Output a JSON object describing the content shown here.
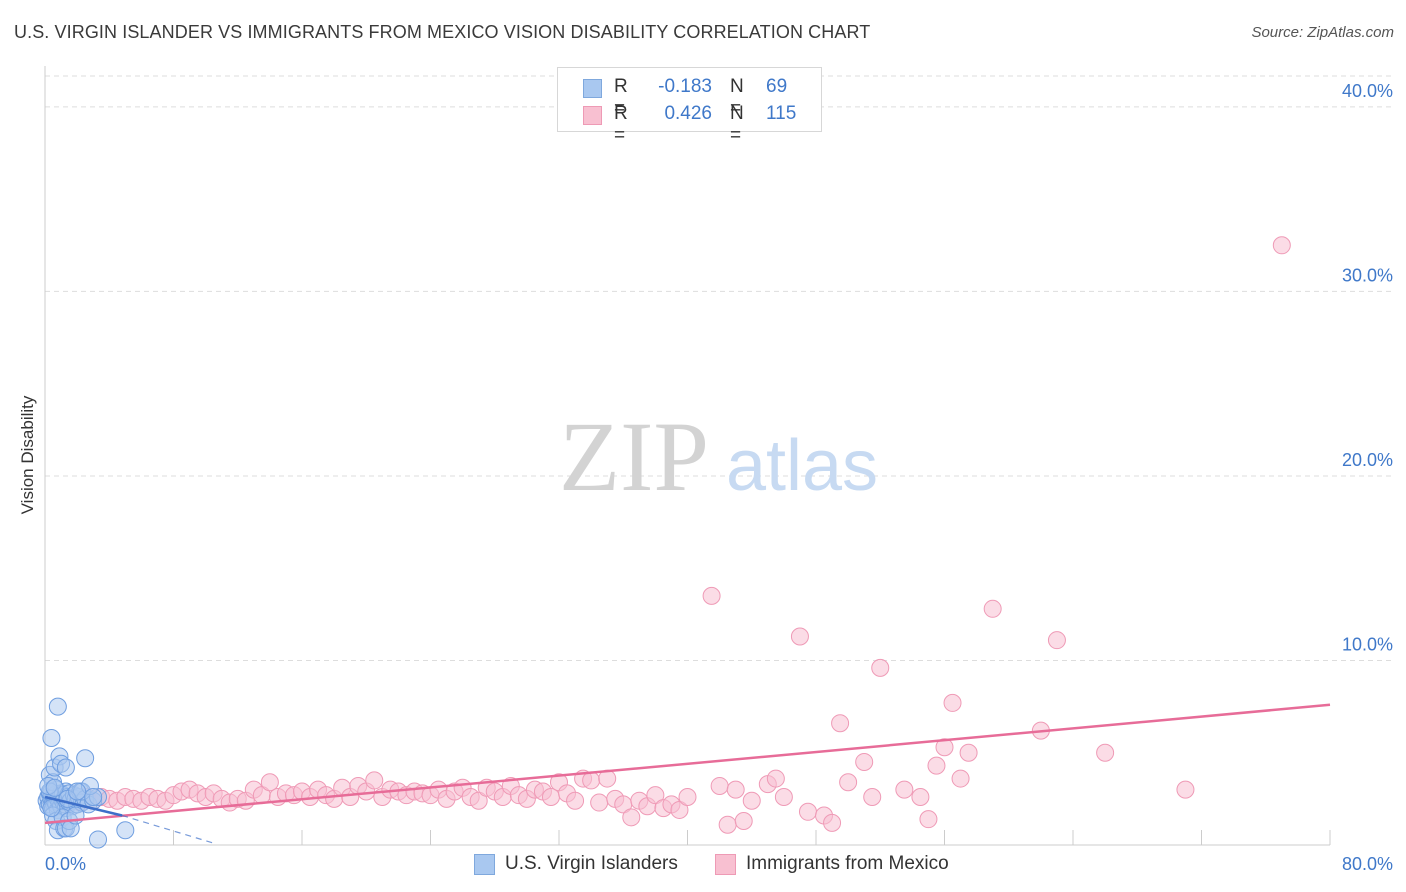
{
  "header": {
    "title": "U.S. VIRGIN ISLANDER VS IMMIGRANTS FROM MEXICO VISION DISABILITY CORRELATION CHART",
    "source": "Source: ZipAtlas.com"
  },
  "watermark": {
    "zip": "ZIP",
    "atlas": "atlas"
  },
  "stats": [
    {
      "r_label": "R =",
      "r_value": "-0.183",
      "n_label": "N =",
      "n_value": "69",
      "swatch": "#a9c8f0",
      "swatch_border": "#7fa8dd"
    },
    {
      "r_label": "R =",
      "r_value": "0.426",
      "n_label": "N =",
      "n_value": "115",
      "swatch": "#f8c0d1",
      "swatch_border": "#ee9ab5"
    }
  ],
  "legend": {
    "series1": "U.S. Virgin Islanders",
    "series2": "Immigrants from Mexico"
  },
  "colors": {
    "blue_fill": "#a9c8f0",
    "blue_stroke": "#6f9ee0",
    "blue_line": "#3d6fc9",
    "pink_fill": "#f8c0d1",
    "pink_stroke": "#ef9ab6",
    "pink_line": "#e76c98",
    "axis_text": "#3f78c9",
    "grid": "#dddddd"
  },
  "chart_data": {
    "type": "scatter",
    "title": "U.S. VIRGIN ISLANDER VS IMMIGRANTS FROM MEXICO VISION DISABILITY CORRELATION CHART",
    "xlabel": "",
    "ylabel": "Vision Disability",
    "xlim": [
      0,
      80
    ],
    "ylim": [
      0,
      42
    ],
    "x_tick_labels": [
      "0.0%",
      "80.0%"
    ],
    "y_ticks": [
      10,
      20,
      30,
      40
    ],
    "y_tick_labels": [
      "10.0%",
      "20.0%",
      "30.0%",
      "40.0%"
    ],
    "grid": true,
    "series": [
      {
        "name": "U.S. Virgin Islanders",
        "r": -0.183,
        "n": 69,
        "trend": {
          "x0": 0,
          "y0": 2.6,
          "x1": 4.8,
          "y1": 1.6,
          "dashed_to_x": 10.5,
          "dashed_to_y": 0.1
        },
        "points": [
          [
            0.1,
            2.4
          ],
          [
            0.2,
            2.6
          ],
          [
            0.2,
            2.1
          ],
          [
            0.3,
            2.8
          ],
          [
            0.3,
            2.2
          ],
          [
            0.4,
            2.5
          ],
          [
            0.4,
            2.9
          ],
          [
            0.5,
            2.3
          ],
          [
            0.5,
            2.0
          ],
          [
            0.6,
            2.7
          ],
          [
            0.6,
            2.4
          ],
          [
            0.7,
            2.2
          ],
          [
            0.7,
            3.0
          ],
          [
            0.8,
            2.5
          ],
          [
            0.8,
            1.9
          ],
          [
            0.9,
            2.6
          ],
          [
            0.9,
            2.3
          ],
          [
            1.0,
            2.8
          ],
          [
            1.0,
            2.1
          ],
          [
            1.1,
            2.4
          ],
          [
            1.1,
            2.7
          ],
          [
            1.2,
            2.2
          ],
          [
            1.2,
            2.5
          ],
          [
            1.3,
            2.9
          ],
          [
            1.3,
            2.0
          ],
          [
            1.4,
            2.6
          ],
          [
            1.5,
            2.3
          ],
          [
            1.5,
            2.8
          ],
          [
            1.6,
            2.4
          ],
          [
            1.7,
            2.1
          ],
          [
            1.8,
            2.7
          ],
          [
            1.9,
            2.5
          ],
          [
            2.0,
            2.2
          ],
          [
            2.1,
            2.6
          ],
          [
            2.2,
            2.9
          ],
          [
            2.3,
            2.3
          ],
          [
            2.5,
            2.5
          ],
          [
            2.7,
            2.2
          ],
          [
            3.0,
            2.4
          ],
          [
            3.3,
            2.6
          ],
          [
            0.3,
            3.8
          ],
          [
            0.5,
            3.4
          ],
          [
            0.4,
            5.8
          ],
          [
            0.6,
            4.2
          ],
          [
            0.8,
            7.5
          ],
          [
            0.9,
            4.8
          ],
          [
            1.0,
            4.4
          ],
          [
            1.3,
            4.2
          ],
          [
            0.5,
            1.6
          ],
          [
            0.7,
            1.3
          ],
          [
            0.8,
            0.8
          ],
          [
            1.1,
            1.5
          ],
          [
            1.2,
            0.9
          ],
          [
            1.3,
            0.9
          ],
          [
            1.5,
            1.3
          ],
          [
            1.6,
            0.9
          ],
          [
            2.3,
            2.9
          ],
          [
            2.5,
            4.7
          ],
          [
            2.8,
            3.2
          ],
          [
            3.0,
            2.6
          ],
          [
            3.3,
            0.3
          ],
          [
            5.0,
            0.8
          ],
          [
            0.3,
            2.9
          ],
          [
            0.2,
            3.2
          ],
          [
            0.6,
            3.1
          ],
          [
            0.4,
            2.0
          ],
          [
            1.9,
            1.6
          ],
          [
            1.4,
            2.5
          ],
          [
            2.0,
            2.9
          ]
        ]
      },
      {
        "name": "Immigrants from Mexico",
        "r": 0.426,
        "n": 115,
        "trend": {
          "x0": 0,
          "y0": 1.2,
          "x1": 80,
          "y1": 7.6
        },
        "points": [
          [
            0.5,
            2.4
          ],
          [
            0.8,
            2.3
          ],
          [
            1.0,
            2.6
          ],
          [
            1.3,
            2.2
          ],
          [
            1.6,
            2.5
          ],
          [
            1.9,
            2.4
          ],
          [
            2.2,
            2.3
          ],
          [
            2.6,
            2.6
          ],
          [
            3.0,
            2.4
          ],
          [
            3.5,
            2.6
          ],
          [
            4.0,
            2.5
          ],
          [
            4.5,
            2.4
          ],
          [
            5.0,
            2.6
          ],
          [
            5.5,
            2.5
          ],
          [
            6.0,
            2.4
          ],
          [
            6.5,
            2.6
          ],
          [
            7.0,
            2.5
          ],
          [
            7.5,
            2.4
          ],
          [
            8.0,
            2.7
          ],
          [
            8.5,
            2.9
          ],
          [
            9.0,
            3.0
          ],
          [
            9.5,
            2.8
          ],
          [
            10.0,
            2.6
          ],
          [
            10.5,
            2.8
          ],
          [
            11.0,
            2.5
          ],
          [
            11.5,
            2.3
          ],
          [
            12.0,
            2.5
          ],
          [
            12.5,
            2.4
          ],
          [
            13.0,
            3.0
          ],
          [
            13.5,
            2.7
          ],
          [
            14.0,
            3.4
          ],
          [
            14.5,
            2.6
          ],
          [
            15.0,
            2.8
          ],
          [
            15.5,
            2.7
          ],
          [
            16.0,
            2.9
          ],
          [
            16.5,
            2.6
          ],
          [
            17.0,
            3.0
          ],
          [
            17.5,
            2.7
          ],
          [
            18.0,
            2.5
          ],
          [
            18.5,
            3.1
          ],
          [
            19.0,
            2.6
          ],
          [
            19.5,
            3.2
          ],
          [
            20.0,
            2.9
          ],
          [
            20.5,
            3.5
          ],
          [
            21.0,
            2.6
          ],
          [
            21.5,
            3.0
          ],
          [
            22.0,
            2.9
          ],
          [
            22.5,
            2.7
          ],
          [
            23.0,
            2.9
          ],
          [
            23.5,
            2.8
          ],
          [
            24.0,
            2.7
          ],
          [
            24.5,
            3.0
          ],
          [
            25.0,
            2.5
          ],
          [
            25.5,
            2.9
          ],
          [
            26.0,
            3.1
          ],
          [
            26.5,
            2.6
          ],
          [
            27.0,
            2.4
          ],
          [
            27.5,
            3.1
          ],
          [
            28.0,
            2.9
          ],
          [
            28.5,
            2.6
          ],
          [
            29.0,
            3.2
          ],
          [
            29.5,
            2.7
          ],
          [
            30.0,
            2.5
          ],
          [
            30.5,
            3.0
          ],
          [
            31.0,
            2.9
          ],
          [
            31.5,
            2.6
          ],
          [
            32.0,
            3.4
          ],
          [
            32.5,
            2.8
          ],
          [
            33.0,
            2.4
          ],
          [
            33.5,
            3.6
          ],
          [
            34.0,
            3.5
          ],
          [
            34.5,
            2.3
          ],
          [
            35.0,
            3.6
          ],
          [
            35.5,
            2.5
          ],
          [
            36.0,
            2.2
          ],
          [
            36.5,
            1.5
          ],
          [
            37.0,
            2.4
          ],
          [
            37.5,
            2.1
          ],
          [
            38.0,
            2.7
          ],
          [
            38.5,
            2.0
          ],
          [
            39.0,
            2.2
          ],
          [
            39.5,
            1.9
          ],
          [
            40.0,
            2.6
          ],
          [
            41.5,
            13.5
          ],
          [
            42.0,
            3.2
          ],
          [
            42.5,
            1.1
          ],
          [
            43.0,
            3.0
          ],
          [
            43.5,
            1.3
          ],
          [
            44.0,
            2.4
          ],
          [
            45.0,
            3.3
          ],
          [
            45.5,
            3.6
          ],
          [
            46.0,
            2.6
          ],
          [
            47.0,
            11.3
          ],
          [
            47.5,
            1.8
          ],
          [
            48.5,
            1.6
          ],
          [
            49.0,
            1.2
          ],
          [
            49.5,
            6.6
          ],
          [
            50.0,
            3.4
          ],
          [
            51.0,
            4.5
          ],
          [
            51.5,
            2.6
          ],
          [
            52.0,
            9.6
          ],
          [
            53.5,
            3.0
          ],
          [
            55.0,
            1.4
          ],
          [
            55.5,
            4.3
          ],
          [
            56.0,
            5.3
          ],
          [
            56.5,
            7.7
          ],
          [
            57.0,
            3.6
          ],
          [
            57.5,
            5.0
          ],
          [
            59.0,
            12.8
          ],
          [
            62.0,
            6.2
          ],
          [
            63.0,
            11.1
          ],
          [
            66.0,
            5.0
          ],
          [
            71.0,
            3.0
          ],
          [
            77.0,
            32.5
          ],
          [
            54.5,
            2.6
          ]
        ]
      }
    ]
  }
}
